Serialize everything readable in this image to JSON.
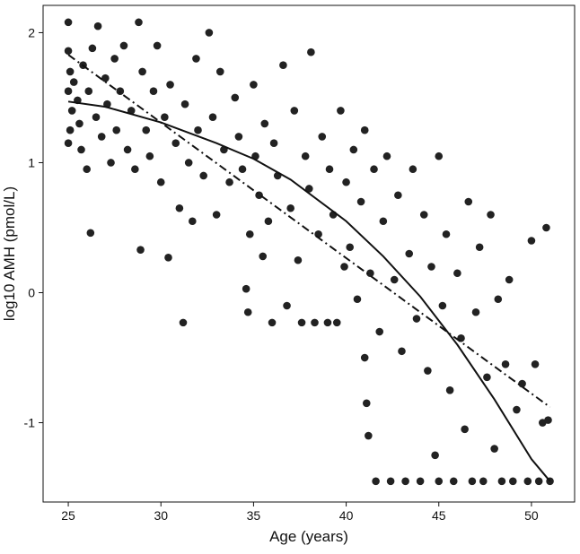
{
  "chart_data": {
    "type": "scatter",
    "x_label": "Age (years)",
    "y_label": "log10 AMH (pmol/L)",
    "xlim": [
      23.64,
      52.33
    ],
    "ylim": [
      -1.61,
      2.21
    ],
    "xticks": [
      25,
      30,
      35,
      40,
      45,
      50
    ],
    "yticks": [
      -1,
      0,
      1,
      2
    ],
    "series": [
      {
        "type": "scatter",
        "color": "#222222",
        "x": [
          25.0,
          25.0,
          25.1,
          25.0,
          25.2,
          25.1,
          25.0,
          25.3,
          25.5,
          25.6,
          25.7,
          25.8,
          26.0,
          26.1,
          26.2,
          26.3,
          26.5,
          26.6,
          26.8,
          27.0,
          27.1,
          27.3,
          27.5,
          27.6,
          27.8,
          28.0,
          28.2,
          28.4,
          28.6,
          28.8,
          28.9,
          29.0,
          29.2,
          29.4,
          29.6,
          29.8,
          30.0,
          30.2,
          30.4,
          30.5,
          30.8,
          31.0,
          31.2,
          31.3,
          31.5,
          31.7,
          31.9,
          32.0,
          32.3,
          32.6,
          32.8,
          33.0,
          33.2,
          33.4,
          33.7,
          34.0,
          34.2,
          34.4,
          34.6,
          34.7,
          34.8,
          35.0,
          35.1,
          35.3,
          35.5,
          35.6,
          35.8,
          36.0,
          36.1,
          36.3,
          36.6,
          36.8,
          37.0,
          37.2,
          37.4,
          37.6,
          37.8,
          38.0,
          38.1,
          38.3,
          38.5,
          38.7,
          39.0,
          39.1,
          39.3,
          39.5,
          39.7,
          39.9,
          40.0,
          40.2,
          40.4,
          40.6,
          40.8,
          41.0,
          41.0,
          41.1,
          41.2,
          41.3,
          41.5,
          41.6,
          41.8,
          42.0,
          42.2,
          42.4,
          42.6,
          42.8,
          43.0,
          43.2,
          43.4,
          43.6,
          43.8,
          44.0,
          44.2,
          44.4,
          44.6,
          44.8,
          45.0,
          45.0,
          45.2,
          45.4,
          45.6,
          45.8,
          46.0,
          46.2,
          46.4,
          46.6,
          46.8,
          47.0,
          47.2,
          47.4,
          47.6,
          47.8,
          48.0,
          48.2,
          48.4,
          48.6,
          48.8,
          49.0,
          49.2,
          49.5,
          49.8,
          50.0,
          50.2,
          50.4,
          50.6,
          50.8,
          51.0,
          50.9
        ],
        "values": [
          2.08,
          1.86,
          1.7,
          1.55,
          1.4,
          1.25,
          1.15,
          1.62,
          1.48,
          1.3,
          1.1,
          1.75,
          0.95,
          1.55,
          0.46,
          1.88,
          1.35,
          2.05,
          1.2,
          1.65,
          1.45,
          1.0,
          1.8,
          1.25,
          1.55,
          1.9,
          1.1,
          1.4,
          0.95,
          2.08,
          0.33,
          1.7,
          1.25,
          1.05,
          1.55,
          1.9,
          0.85,
          1.35,
          0.27,
          1.6,
          1.15,
          0.65,
          -0.23,
          1.45,
          1.0,
          0.55,
          1.8,
          1.25,
          0.9,
          2.0,
          1.35,
          0.6,
          1.7,
          1.1,
          0.85,
          1.5,
          1.2,
          0.95,
          0.03,
          -0.15,
          0.45,
          1.6,
          1.05,
          0.75,
          0.28,
          1.3,
          0.55,
          -0.23,
          1.15,
          0.9,
          1.75,
          -0.1,
          0.65,
          1.4,
          0.25,
          -0.23,
          1.05,
          0.8,
          1.85,
          -0.23,
          0.45,
          1.2,
          -0.23,
          0.95,
          0.6,
          -0.23,
          1.4,
          0.2,
          0.85,
          0.35,
          1.1,
          -0.05,
          0.7,
          1.25,
          -0.5,
          -0.85,
          -1.1,
          0.15,
          0.95,
          -1.45,
          -0.3,
          0.55,
          1.05,
          -1.45,
          0.1,
          0.75,
          -0.45,
          -1.45,
          0.3,
          0.95,
          -0.2,
          -1.45,
          0.6,
          -0.6,
          0.2,
          -1.25,
          1.05,
          -1.45,
          -0.1,
          0.45,
          -0.75,
          -1.45,
          0.15,
          -0.35,
          -1.05,
          0.7,
          -1.45,
          -0.15,
          0.35,
          -1.45,
          -0.65,
          0.6,
          -1.2,
          -0.05,
          -1.45,
          -0.55,
          0.1,
          -1.45,
          -0.9,
          -0.7,
          -1.45,
          0.4,
          -0.55,
          -1.45,
          -1.0,
          0.5,
          -1.45,
          -0.98
        ]
      },
      {
        "type": "line",
        "color": "#111111",
        "dash": "solid",
        "x": [
          25,
          27,
          30,
          33,
          35,
          37,
          40,
          42,
          44,
          46,
          48,
          50,
          51
        ],
        "values": [
          1.47,
          1.43,
          1.31,
          1.15,
          1.03,
          0.87,
          0.55,
          0.28,
          -0.03,
          -0.4,
          -0.82,
          -1.28,
          -1.45
        ]
      },
      {
        "type": "line",
        "color": "#111111",
        "dash": "dash-dot",
        "x": [
          25,
          51
        ],
        "values": [
          1.83,
          -0.88
        ]
      }
    ]
  }
}
